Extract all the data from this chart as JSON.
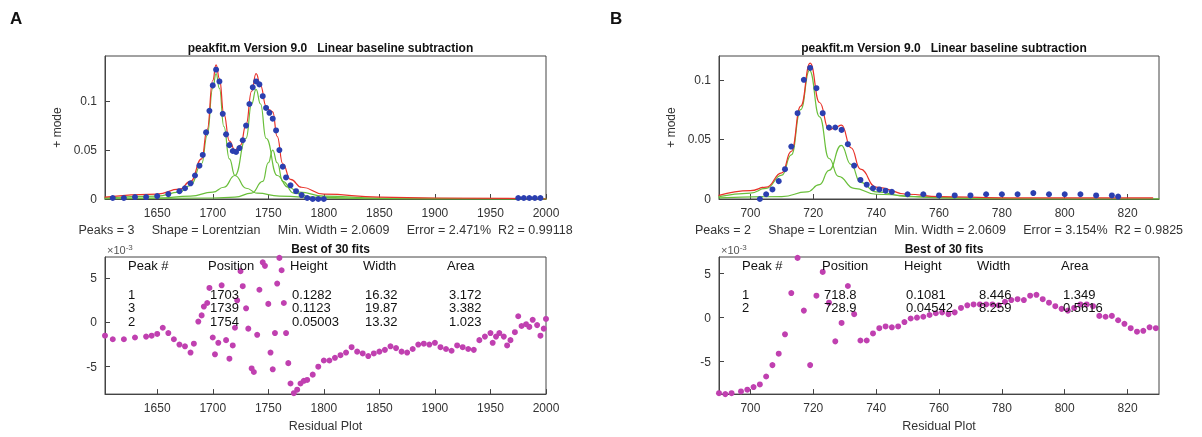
{
  "chart_data": [
    {
      "type": "line",
      "title": "peakfit.m Version 9.0   Linear baseline subtraction",
      "ylabel": "+ mode",
      "xlabel": "Peaks = 3     Shape = Lorentzian     Min. Width = 2.0609     Error = 2.471%  R2 = 0.99118",
      "annotations": [
        "A"
      ],
      "xlim": [
        1603,
        2000
      ],
      "xticks": [
        1650,
        1700,
        1750,
        1800,
        1850,
        1900,
        1950,
        2000
      ],
      "ylim": [
        0,
        0.146
      ],
      "yticks": [
        0,
        0.05,
        0.1
      ],
      "line_style": "solid",
      "series": [
        {
          "type": "line",
          "marker": "none",
          "color": "#6abf3b",
          "x": [
            1603,
            1650,
            1670,
            1680,
            1690,
            1695,
            1700,
            1703,
            1706,
            1710,
            1715,
            1720,
            1730,
            1740,
            1760,
            1800,
            1900,
            2000
          ],
          "values": [
            0.001,
            0.003,
            0.007,
            0.014,
            0.036,
            0.065,
            0.113,
            0.128,
            0.113,
            0.074,
            0.041,
            0.024,
            0.011,
            0.006,
            0.003,
            0.001,
            0,
            0
          ]
        },
        {
          "type": "line",
          "marker": "none",
          "color": "#6abf3b",
          "x": [
            1603,
            1650,
            1680,
            1700,
            1710,
            1720,
            1730,
            1735,
            1739,
            1743,
            1748,
            1758,
            1768,
            1778,
            1800,
            1850,
            2000
          ],
          "values": [
            0.001,
            0.001,
            0.003,
            0.007,
            0.012,
            0.024,
            0.062,
            0.097,
            0.112,
            0.097,
            0.062,
            0.024,
            0.012,
            0.007,
            0.003,
            0.001,
            0
          ]
        },
        {
          "type": "line",
          "marker": "none",
          "color": "#6abf3b",
          "x": [
            1603,
            1700,
            1720,
            1735,
            1745,
            1750,
            1754,
            1758,
            1763,
            1773,
            1790,
            1850,
            2000
          ],
          "values": [
            0,
            0.001,
            0.002,
            0.006,
            0.018,
            0.037,
            0.05,
            0.037,
            0.018,
            0.006,
            0.002,
            0,
            0
          ]
        },
        {
          "type": "scatter",
          "marker": "circle",
          "color": "#2b3fb0",
          "x": [
            1610,
            1620,
            1630,
            1640,
            1650,
            1660,
            1670,
            1675,
            1680,
            1684,
            1688,
            1691,
            1694,
            1697,
            1700,
            1703,
            1706,
            1709,
            1712,
            1715,
            1718,
            1721,
            1724,
            1727,
            1730,
            1733,
            1736,
            1739,
            1742,
            1745,
            1748,
            1751,
            1754,
            1757,
            1760,
            1763,
            1766,
            1770,
            1775,
            1780,
            1785,
            1790,
            1795,
            1800,
            1975,
            1980,
            1985,
            1990,
            1995
          ],
          "values": [
            0.001,
            0.001,
            0.002,
            0.002,
            0.003,
            0.005,
            0.008,
            0.011,
            0.016,
            0.024,
            0.034,
            0.045,
            0.068,
            0.09,
            0.116,
            0.132,
            0.12,
            0.087,
            0.066,
            0.055,
            0.049,
            0.048,
            0.052,
            0.06,
            0.075,
            0.097,
            0.114,
            0.12,
            0.117,
            0.105,
            0.093,
            0.088,
            0.082,
            0.07,
            0.05,
            0.033,
            0.022,
            0.014,
            0.008,
            0.004,
            0.001,
            0,
            0,
            0,
            0.001,
            0.001,
            0.001,
            0.001,
            0.001
          ]
        },
        {
          "type": "line",
          "marker": "none",
          "color": "#e8322a",
          "x": [
            1603,
            1650,
            1670,
            1680,
            1690,
            1695,
            1700,
            1703,
            1706,
            1710,
            1715,
            1720,
            1725,
            1730,
            1735,
            1739,
            1743,
            1748,
            1751,
            1754,
            1758,
            1763,
            1770,
            1780,
            1800,
            1850,
            1900,
            2000
          ],
          "values": [
            0.002,
            0.005,
            0.01,
            0.018,
            0.041,
            0.071,
            0.121,
            0.137,
            0.123,
            0.087,
            0.059,
            0.05,
            0.055,
            0.076,
            0.11,
            0.128,
            0.116,
            0.095,
            0.091,
            0.089,
            0.064,
            0.036,
            0.02,
            0.012,
            0.005,
            0.002,
            0.001,
            0
          ]
        }
      ]
    },
    {
      "type": "scatter",
      "title": "Best of 30 fits",
      "xlabel": "Residual Plot",
      "annotations": [
        "×10$^{-3}$",
        "Peak #",
        "Position",
        "Height",
        "Width",
        "Area",
        "1",
        "1703",
        "0.1282",
        "16.32",
        "3.172",
        "3",
        "1739",
        "0.1123",
        "19.87",
        "3.382",
        "2",
        "1754",
        "0.05003",
        "13.32",
        "1.023"
      ],
      "xlim": [
        1603,
        2000
      ],
      "xticks": [
        1650,
        1700,
        1750,
        1800,
        1850,
        1900,
        1950,
        2000
      ],
      "ylim": [
        -8.1,
        7.4
      ],
      "yticks": [
        -5,
        0,
        5
      ],
      "series": [
        {
          "marker": "circle",
          "color": "#c040b0",
          "x": [
            1603,
            1610,
            1620,
            1630,
            1640,
            1645,
            1650,
            1655,
            1660,
            1665,
            1670,
            1675,
            1680,
            1683,
            1687,
            1690,
            1692,
            1695,
            1697,
            1700,
            1702,
            1705,
            1708,
            1712,
            1715,
            1718,
            1720,
            1722,
            1725,
            1727,
            1730,
            1732,
            1735,
            1737,
            1740,
            1742,
            1745,
            1747,
            1750,
            1752,
            1754,
            1756,
            1758,
            1760,
            1762,
            1764,
            1766,
            1768,
            1770,
            1773,
            1776,
            1779,
            1782,
            1785,
            1790,
            1795,
            1800,
            1805,
            1810,
            1815,
            1820,
            1825,
            1830,
            1835,
            1840,
            1845,
            1850,
            1855,
            1860,
            1865,
            1870,
            1875,
            1880,
            1885,
            1890,
            1895,
            1900,
            1905,
            1910,
            1915,
            1920,
            1925,
            1930,
            1935,
            1940,
            1945,
            1950,
            1952,
            1955,
            1958,
            1962,
            1965,
            1968,
            1972,
            1975,
            1978,
            1982,
            1985,
            1988,
            1992,
            1995,
            1998,
            2000
          ],
          "values": [
            -1.5,
            -1.9,
            -1.9,
            -1.7,
            -1.6,
            -1.5,
            -1.3,
            -0.6,
            -1.2,
            -1.9,
            -2.5,
            -2.7,
            -3.4,
            -2.4,
            0.1,
            0.8,
            1.8,
            2.2,
            3.9,
            -1.7,
            -3.6,
            -2.3,
            4.2,
            -2.0,
            -4.1,
            -2.6,
            -0.6,
            2.5,
            5.8,
            4.1,
            1.6,
            -0.7,
            -5.2,
            -5.6,
            -1.4,
            3.7,
            6.8,
            6.4,
            2.1,
            -3.4,
            -5.3,
            -1.2,
            4.4,
            7.3,
            5.9,
            2.2,
            -1.2,
            -4.6,
            -6.9,
            -8.0,
            -7.6,
            -6.9,
            -6.6,
            -6.5,
            -5.9,
            -5.0,
            -4.3,
            -4.3,
            -4.0,
            -3.7,
            -3.4,
            -2.8,
            -3.3,
            -3.5,
            -3.8,
            -3.5,
            -3.3,
            -3.1,
            -2.7,
            -2.9,
            -3.3,
            -3.4,
            -3.0,
            -2.5,
            -2.4,
            -2.5,
            -2.3,
            -2.8,
            -3.0,
            -3.2,
            -2.6,
            -2.8,
            -3.0,
            -3.1,
            -2.0,
            -1.6,
            -1.2,
            -2.3,
            -1.6,
            -1.2,
            -1.6,
            -2.6,
            -2.0,
            -1.1,
            0.7,
            -0.4,
            -0.2,
            -0.5,
            0.3,
            -0.3,
            -1.5,
            -0.7,
            0.4
          ]
        }
      ]
    },
    {
      "type": "line",
      "title": "peakfit.m Version 9.0   Linear baseline subtraction",
      "ylabel": "+ mode",
      "xlabel": "Peaks = 2     Shape = Lorentzian     Min. Width = 2.0609     Error = 3.154%  R2 = 0.9825",
      "annotations": [
        "B"
      ],
      "xlim": [
        690,
        830
      ],
      "xticks": [
        700,
        720,
        740,
        760,
        780,
        800,
        820
      ],
      "ylim": [
        0,
        0.12
      ],
      "yticks": [
        0,
        0.05,
        0.1
      ],
      "line_style": "solid",
      "series": [
        {
          "type": "line",
          "marker": "none",
          "color": "#6abf3b",
          "x": [
            690,
            700,
            705,
            710,
            713,
            716,
            718.8,
            722,
            725,
            728,
            733,
            740,
            760,
            800,
            830
          ],
          "values": [
            0.002,
            0.005,
            0.009,
            0.02,
            0.037,
            0.075,
            0.108,
            0.069,
            0.034,
            0.019,
            0.009,
            0.004,
            0.001,
            0,
            0
          ]
        },
        {
          "type": "line",
          "marker": "none",
          "color": "#6abf3b",
          "x": [
            690,
            710,
            718,
            722,
            725,
            728.9,
            732,
            735,
            740,
            750,
            780,
            830
          ],
          "values": [
            0.001,
            0.002,
            0.006,
            0.012,
            0.024,
            0.045,
            0.029,
            0.014,
            0.006,
            0.002,
            0,
            0
          ]
        },
        {
          "type": "scatter",
          "marker": "circle",
          "color": "#2b3fb0",
          "x": [
            703,
            705,
            707,
            709,
            711,
            713,
            715,
            717,
            719,
            721,
            723,
            725,
            727,
            729,
            731,
            733,
            735,
            737,
            739,
            741,
            743,
            745,
            750,
            755,
            760,
            765,
            770,
            775,
            780,
            785,
            790,
            795,
            800,
            805,
            810,
            815,
            817
          ],
          "values": [
            0,
            0.004,
            0.008,
            0.015,
            0.025,
            0.044,
            0.072,
            0.1,
            0.11,
            0.093,
            0.072,
            0.06,
            0.06,
            0.058,
            0.046,
            0.028,
            0.016,
            0.012,
            0.009,
            0.008,
            0.007,
            0.006,
            0.004,
            0.004,
            0.003,
            0.003,
            0.003,
            0.004,
            0.004,
            0.004,
            0.005,
            0.004,
            0.004,
            0.004,
            0.003,
            0.003,
            0.002
          ]
        },
        {
          "type": "line",
          "marker": "none",
          "color": "#e8322a",
          "x": [
            690,
            700,
            705,
            710,
            713,
            716,
            719,
            722,
            725,
            727,
            729,
            732,
            735,
            740,
            750,
            760,
            780,
            800,
            828
          ],
          "values": [
            0.003,
            0.007,
            0.01,
            0.022,
            0.04,
            0.078,
            0.114,
            0.081,
            0.058,
            0.06,
            0.062,
            0.043,
            0.025,
            0.01,
            0.004,
            0.002,
            0.001,
            0.001,
            0.001
          ]
        }
      ]
    },
    {
      "type": "scatter",
      "title": "Best of 30 fits",
      "xlabel": "Residual Plot",
      "annotations": [
        "×10$^{-3}$",
        "Peak #",
        "Position",
        "Height",
        "Width",
        "Area",
        "1",
        "718.8",
        "0.1081",
        "8.446",
        "1.349",
        "2",
        "728.9",
        "0.04542",
        "8.259",
        "0.5616"
      ],
      "xlim": [
        690,
        830
      ],
      "xticks": [
        700,
        720,
        740,
        760,
        780,
        800,
        820
      ],
      "ylim": [
        -8.7,
        6.9
      ],
      "yticks": [
        -5,
        0,
        5
      ],
      "series": [
        {
          "marker": "circle",
          "color": "#c040b0",
          "x": [
            690,
            692,
            694,
            697,
            699,
            701,
            703,
            705,
            707,
            709,
            711,
            713,
            715,
            717,
            719,
            721,
            723,
            725,
            727,
            729,
            731,
            733,
            735,
            737,
            739,
            741,
            743,
            745,
            747,
            749,
            751,
            753,
            755,
            757,
            759,
            761,
            763,
            765,
            767,
            769,
            771,
            773,
            775,
            777,
            779,
            781,
            783,
            785,
            787,
            789,
            791,
            793,
            795,
            797,
            799,
            801,
            803,
            805,
            807,
            809,
            811,
            813,
            815,
            817,
            819,
            821,
            823,
            825,
            827,
            829
          ],
          "values": [
            -8.6,
            -8.7,
            -8.6,
            -8.4,
            -8.2,
            -7.9,
            -7.6,
            -6.7,
            -5.4,
            -4.1,
            -1.9,
            2.8,
            6.8,
            0.8,
            -5.4,
            2.5,
            5.2,
            1.7,
            -2.7,
            -0.6,
            3.6,
            0.4,
            -2.6,
            -2.6,
            -1.8,
            -1.2,
            -1.0,
            -1.1,
            -1.0,
            -0.5,
            -0.1,
            0.0,
            0.1,
            0.3,
            0.5,
            0.6,
            0.4,
            0.6,
            1.1,
            1.4,
            1.5,
            1.5,
            1.5,
            1.5,
            1.4,
            1.8,
            2.0,
            2.1,
            2.0,
            2.5,
            2.6,
            2.1,
            1.7,
            1.3,
            1.0,
            0.8,
            1.1,
            1.5,
            1.5,
            1.3,
            0.2,
            0.1,
            0.2,
            -0.3,
            -0.7,
            -1.2,
            -1.6,
            -1.5,
            -1.1,
            -1.2
          ]
        }
      ]
    }
  ]
}
